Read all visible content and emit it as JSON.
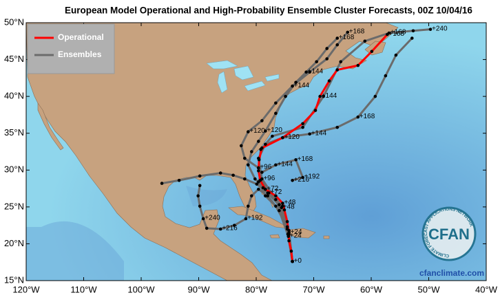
{
  "title": "European Model Operational and High-Probability Ensemble Cluster Forecasts, 00Z 10/04/16",
  "map": {
    "xlim": [
      -120,
      -40
    ],
    "ylim": [
      15,
      50
    ],
    "xticks": [
      {
        "value": -120,
        "label": "120°W"
      },
      {
        "value": -110,
        "label": "110°W"
      },
      {
        "value": -100,
        "label": "100°W"
      },
      {
        "value": -90,
        "label": "90°W"
      },
      {
        "value": -80,
        "label": "80°W"
      },
      {
        "value": -70,
        "label": "70°W"
      },
      {
        "value": -60,
        "label": "60°W"
      },
      {
        "value": -50,
        "label": "50°W"
      },
      {
        "value": -40,
        "label": "40°W"
      }
    ],
    "yticks": [
      {
        "value": 15,
        "label": "15°N"
      },
      {
        "value": 20,
        "label": "20°N"
      },
      {
        "value": 25,
        "label": "25°N"
      },
      {
        "value": 30,
        "label": "30°N"
      },
      {
        "value": 35,
        "label": "35°N"
      },
      {
        "value": 40,
        "label": "40°N"
      },
      {
        "value": 45,
        "label": "45°N"
      },
      {
        "value": 50,
        "label": "50°N"
      }
    ]
  },
  "legend": "upper left",
  "series": [
    {
      "name": "Ensembles",
      "color": "#6b6b6b",
      "tracks": [
        [
          {
            "lon": -73.7,
            "lat": 17.6
          },
          {
            "lon": -74.3,
            "lat": 21.5
          },
          {
            "lon": -75.6,
            "lat": 24.9,
            "label": "+48"
          },
          {
            "lon": -78.0,
            "lat": 26.9
          },
          {
            "lon": -79.9,
            "lat": 28.1
          },
          {
            "lon": -82.0,
            "lat": 28.8
          },
          {
            "lon": -84.0,
            "lat": 29.3
          },
          {
            "lon": -86.2,
            "lat": 29.6
          },
          {
            "lon": -89.8,
            "lat": 29.2
          },
          {
            "lon": -93.4,
            "lat": 28.6
          },
          {
            "lon": -96.4,
            "lat": 28.2
          }
        ],
        [
          {
            "lon": -73.7,
            "lat": 17.6
          },
          {
            "lon": -74.4,
            "lat": 21.0,
            "label": "+24"
          },
          {
            "lon": -76.0,
            "lat": 24.5
          },
          {
            "lon": -78.0,
            "lat": 26.5
          },
          {
            "lon": -79.6,
            "lat": 27.4
          },
          {
            "lon": -80.8,
            "lat": 26.5
          },
          {
            "lon": -81.4,
            "lat": 25.1
          },
          {
            "lon": -81.8,
            "lat": 23.4,
            "label": "+192"
          },
          {
            "lon": -83.8,
            "lat": 22.5
          },
          {
            "lon": -86.2,
            "lat": 22.0,
            "label": "+216"
          },
          {
            "lon": -88.6,
            "lat": 22.1
          },
          {
            "lon": -89.2,
            "lat": 23.4,
            "label": "+240"
          },
          {
            "lon": -89.8,
            "lat": 25.1
          },
          {
            "lon": -90.1,
            "lat": 26.5
          },
          {
            "lon": -89.8,
            "lat": 27.9
          }
        ],
        [
          {
            "lon": -73.7,
            "lat": 17.6
          },
          {
            "lon": -74.5,
            "lat": 21.3
          },
          {
            "lon": -75.4,
            "lat": 25.1
          },
          {
            "lon": -77.8,
            "lat": 26.9,
            "label": "+72"
          },
          {
            "lon": -80.2,
            "lat": 28.8
          },
          {
            "lon": -81.4,
            "lat": 30.7
          },
          {
            "lon": -80.8,
            "lat": 32.5
          },
          {
            "lon": -79.6,
            "lat": 33.9
          },
          {
            "lon": -78.4,
            "lat": 35.3,
            "label": "+120"
          },
          {
            "lon": -76.6,
            "lat": 37.7
          },
          {
            "lon": -74.9,
            "lat": 40.0
          },
          {
            "lon": -73.1,
            "lat": 41.9
          },
          {
            "lon": -71.3,
            "lat": 43.3,
            "label": "+144"
          },
          {
            "lon": -69.5,
            "lat": 44.7
          },
          {
            "lon": -67.7,
            "lat": 46.5
          },
          {
            "lon": -65.9,
            "lat": 47.9,
            "label": "+168"
          }
        ],
        [
          {
            "lon": -73.7,
            "lat": 17.6
          },
          {
            "lon": -74.3,
            "lat": 21.8
          },
          {
            "lon": -76.6,
            "lat": 26.0
          },
          {
            "lon": -79.0,
            "lat": 28.8,
            "label": "+96"
          },
          {
            "lon": -79.6,
            "lat": 31.6
          },
          {
            "lon": -78.4,
            "lat": 33.5
          },
          {
            "lon": -75.4,
            "lat": 34.4
          },
          {
            "lon": -70.7,
            "lat": 34.9,
            "label": "+144"
          },
          {
            "lon": -65.9,
            "lat": 35.8
          },
          {
            "lon": -62.3,
            "lat": 37.2,
            "label": "+168"
          },
          {
            "lon": -59.3,
            "lat": 40.0
          },
          {
            "lon": -57.5,
            "lat": 42.8
          },
          {
            "lon": -55.7,
            "lat": 45.6
          },
          {
            "lon": -52.9,
            "lat": 47.9
          }
        ],
        [
          {
            "lon": -73.7,
            "lat": 17.6
          },
          {
            "lon": -74.6,
            "lat": 22.3
          },
          {
            "lon": -76.6,
            "lat": 25.1
          },
          {
            "lon": -78.4,
            "lat": 26.5
          },
          {
            "lon": -79.6,
            "lat": 28.4
          },
          {
            "lon": -79.0,
            "lat": 29.7
          },
          {
            "lon": -76.6,
            "lat": 30.7,
            "label": "+144"
          },
          {
            "lon": -73.1,
            "lat": 31.4,
            "label": "+168"
          },
          {
            "lon": -71.9,
            "lat": 29.0,
            "label": "+192"
          },
          {
            "lon": -73.7,
            "lat": 28.6,
            "label": "+216"
          }
        ],
        [
          {
            "lon": -73.7,
            "lat": 17.6
          },
          {
            "lon": -74.6,
            "lat": 22.0
          },
          {
            "lon": -76.0,
            "lat": 25.3
          },
          {
            "lon": -78.8,
            "lat": 27.6
          },
          {
            "lon": -79.6,
            "lat": 30.3,
            "label": "+96"
          },
          {
            "lon": -82.0,
            "lat": 31.6
          },
          {
            "lon": -82.6,
            "lat": 33.3
          },
          {
            "lon": -81.4,
            "lat": 35.2,
            "label": "+120"
          },
          {
            "lon": -79.0,
            "lat": 36.7
          },
          {
            "lon": -76.6,
            "lat": 39.1
          },
          {
            "lon": -73.7,
            "lat": 41.4,
            "label": "+144"
          },
          {
            "lon": -70.7,
            "lat": 43.3
          },
          {
            "lon": -67.7,
            "lat": 45.1
          },
          {
            "lon": -65.9,
            "lat": 47.0
          },
          {
            "lon": -64.1,
            "lat": 48.7,
            "label": "+168"
          }
        ],
        [
          {
            "lon": -73.7,
            "lat": 17.6
          },
          {
            "lon": -74.3,
            "lat": 21.3
          },
          {
            "lon": -75.4,
            "lat": 25.1
          },
          {
            "lon": -78.4,
            "lat": 27.4
          },
          {
            "lon": -79.6,
            "lat": 30.3
          },
          {
            "lon": -79.2,
            "lat": 32.8
          },
          {
            "lon": -77.2,
            "lat": 34.6
          },
          {
            "lon": -71.9,
            "lat": 35.8
          },
          {
            "lon": -68.3,
            "lat": 40.0
          },
          {
            "lon": -65.3,
            "lat": 44.7
          },
          {
            "lon": -61.1,
            "lat": 47.5
          },
          {
            "lon": -56.9,
            "lat": 48.6,
            "label": "+168"
          },
          {
            "lon": -52.7,
            "lat": 48.9
          },
          {
            "lon": -49.7,
            "lat": 49.1,
            "label": "+240"
          }
        ]
      ]
    },
    {
      "name": "Operational",
      "color": "#ff0000",
      "tracks": [
        [
          {
            "lon": -73.7,
            "lat": 17.6,
            "label": "+0"
          },
          {
            "lon": -73.9,
            "lat": 19.0
          },
          {
            "lon": -74.3,
            "lat": 20.4
          },
          {
            "lon": -74.3,
            "lat": 21.5,
            "label": "+24"
          },
          {
            "lon": -74.6,
            "lat": 23.0
          },
          {
            "lon": -75.1,
            "lat": 24.6
          },
          {
            "lon": -75.4,
            "lat": 25.5,
            "label": "+48"
          },
          {
            "lon": -76.6,
            "lat": 26.5
          },
          {
            "lon": -78.4,
            "lat": 27.4,
            "label": "+72"
          },
          {
            "lon": -79.3,
            "lat": 28.6
          },
          {
            "lon": -79.6,
            "lat": 29.9
          },
          {
            "lon": -79.5,
            "lat": 31.4
          },
          {
            "lon": -79.0,
            "lat": 33.0
          },
          {
            "lon": -75.4,
            "lat": 34.4,
            "label": "+120"
          },
          {
            "lon": -71.9,
            "lat": 36.3
          },
          {
            "lon": -69.7,
            "lat": 38.1
          },
          {
            "lon": -68.9,
            "lat": 40.0,
            "label": "+144"
          },
          {
            "lon": -67.3,
            "lat": 42.1
          },
          {
            "lon": -65.9,
            "lat": 43.6
          },
          {
            "lon": -62.3,
            "lat": 44.2
          },
          {
            "lon": -59.9,
            "lat": 46.1
          },
          {
            "lon": -57.2,
            "lat": 48.4,
            "label": "+168"
          }
        ]
      ]
    }
  ],
  "logo": {
    "text": "CFAN",
    "ring": "CLIMATE FORECAST APPLICATIONS NETWORK",
    "url": "cfanclimate.com"
  }
}
